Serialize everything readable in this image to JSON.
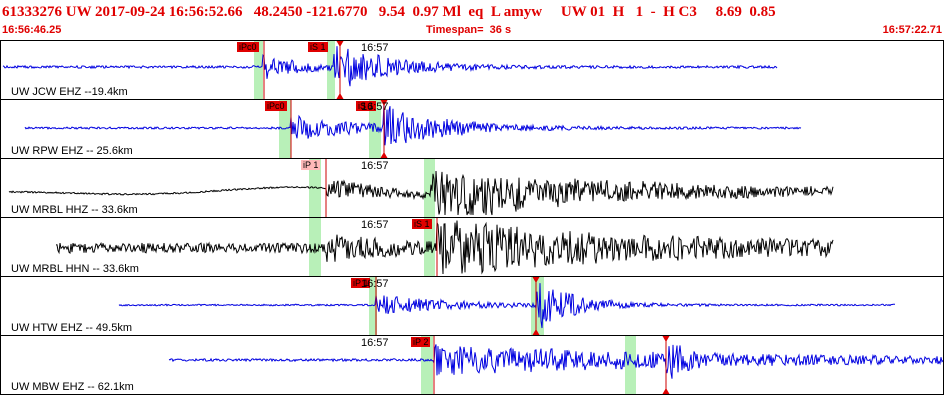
{
  "header": {
    "title": "61333276 UW 2017-09-24 16:56:52.66   48.2450 -121.6770   9.54  0.97 Ml  eq  L amyw     UW 01  H   1  -  H C3     8.69  0.85",
    "start_time": "16:56:46.25",
    "timespan": "Timespan=  36 s",
    "end_time": "16:57:22.71"
  },
  "colors": {
    "title_red": "#e00000",
    "trace_blue": "#0000e0",
    "trace_black": "#000000",
    "window_green": "#b8f0b8",
    "pick_red": "#e00000",
    "pick_light": "#ffb8b8"
  },
  "panels": [
    {
      "station": "UW JCW EHZ --19.4km",
      "time_label": "16:57",
      "trace_color": "blue",
      "picks": [
        {
          "label": "iPc0",
          "style": "dark"
        },
        {
          "label": "iS 1",
          "style": "dark"
        }
      ]
    },
    {
      "station": "UW RPW EHZ -- 25.6km",
      "time_label": "16:57",
      "trace_color": "blue",
      "picks": [
        {
          "label": "iPc0",
          "style": "dark"
        },
        {
          "label": "iS 1",
          "style": "dark"
        }
      ]
    },
    {
      "station": "UW MRBL HHZ -- 33.6km",
      "time_label": "16:57",
      "trace_color": "black",
      "picks": [
        {
          "label": "iP 1",
          "style": "light"
        }
      ]
    },
    {
      "station": "UW MRBL HHN -- 33.6km",
      "time_label": "16:57",
      "trace_color": "black",
      "picks": [
        {
          "label": "iS 1",
          "style": "dark"
        }
      ]
    },
    {
      "station": "UW HTW EHZ -- 49.5km",
      "time_label": "16:57",
      "trace_color": "blue",
      "picks": [
        {
          "label": "iP 1",
          "style": "dark"
        }
      ]
    },
    {
      "station": "UW MBW EHZ -- 62.1km",
      "time_label": "16:57",
      "trace_color": "blue",
      "picks": [
        {
          "label": "iP 2",
          "style": "dark"
        }
      ]
    }
  ]
}
